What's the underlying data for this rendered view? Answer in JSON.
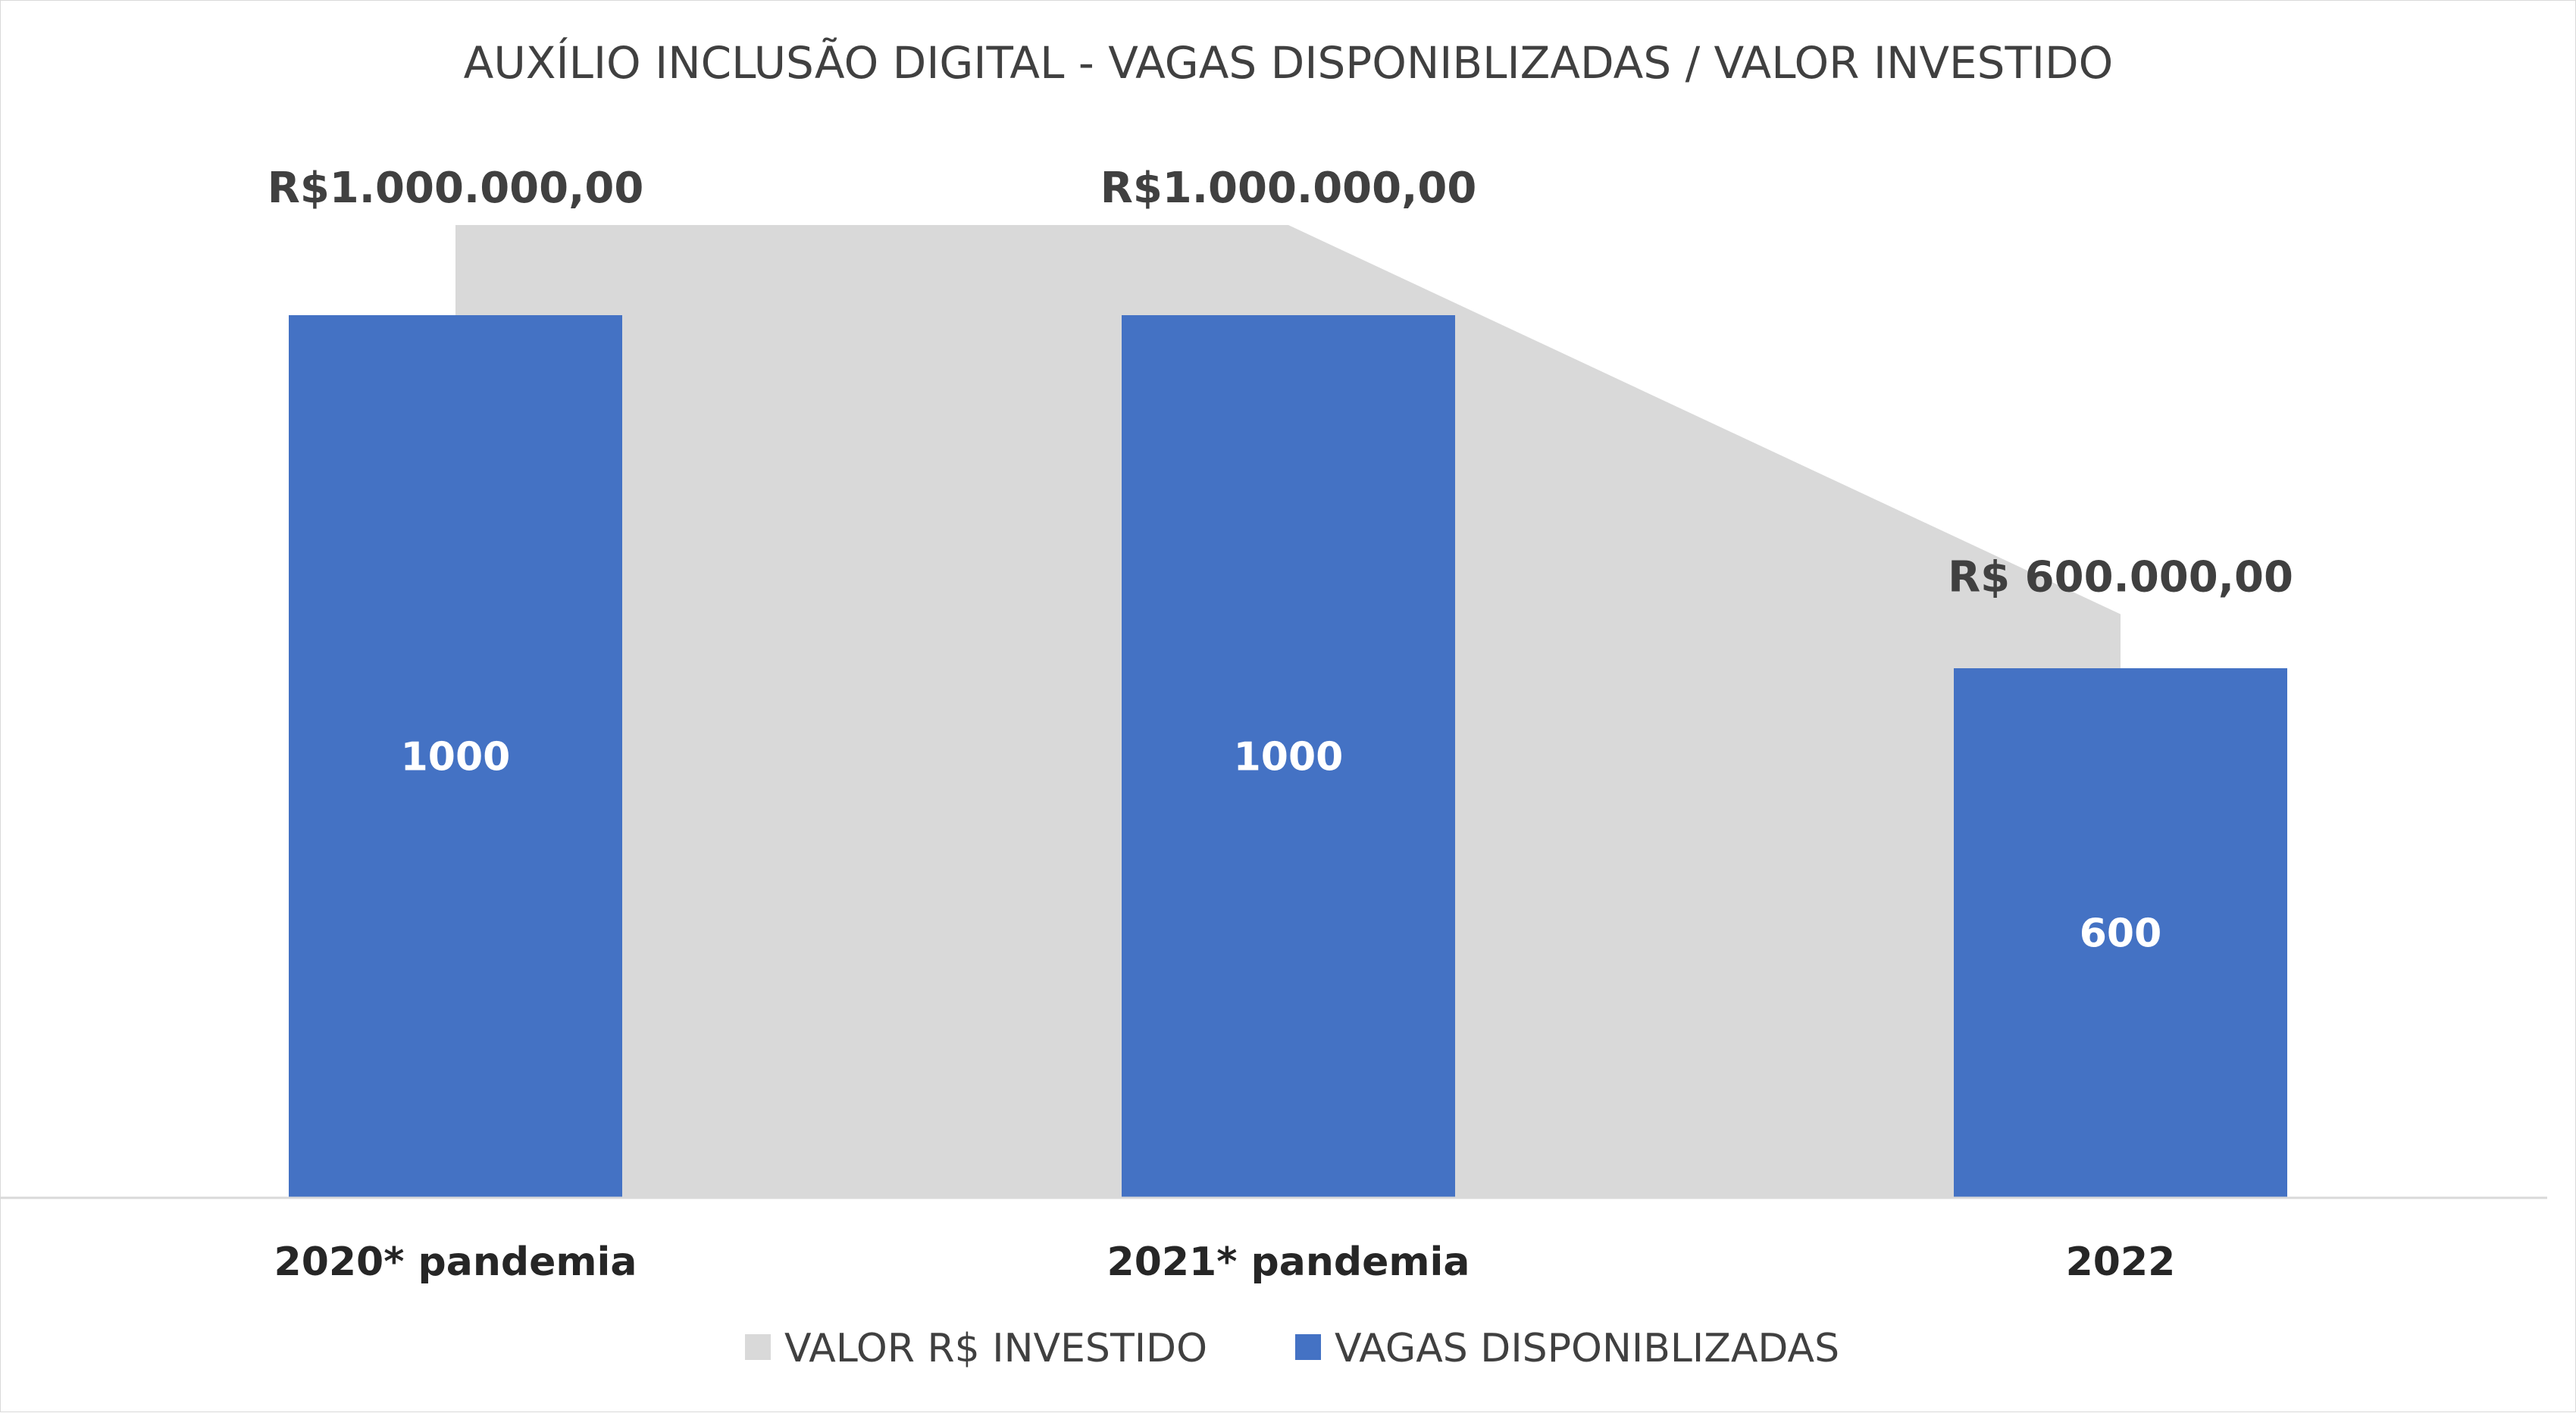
{
  "chart_data": {
    "type": "bar",
    "title": "AUXÍLIO INCLUSÃO DIGITAL - VAGAS DISPONIBLIZADAS / VALOR INVESTIDO",
    "categories": [
      "2020* pandemia",
      "2021* pandemia",
      "2022"
    ],
    "series": [
      {
        "name": "VALOR R$ INVESTIDO",
        "type": "area",
        "values": [
          1000000,
          1000000,
          600000
        ],
        "labels": [
          "R$1.000.000,00",
          "R$1.000.000,00",
          "R$ 600.000,00"
        ],
        "color": "#d9d9d9"
      },
      {
        "name": "VAGAS DISPONIBLIZADAS",
        "type": "bar",
        "values": [
          1000,
          1000,
          600
        ],
        "labels": [
          "1000",
          "1000",
          "600"
        ],
        "color": "#4472c4"
      }
    ],
    "legend_position": "bottom",
    "grid": false
  }
}
